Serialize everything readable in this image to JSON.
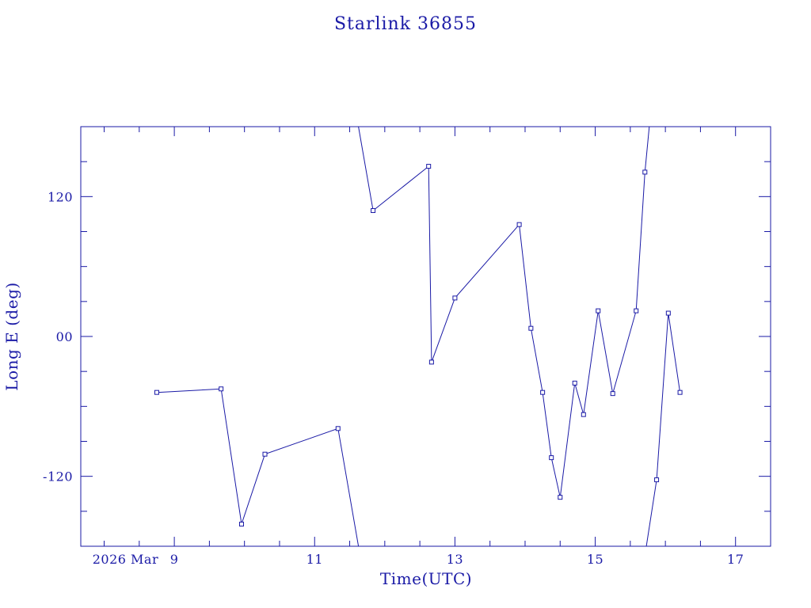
{
  "chart_data": {
    "type": "line",
    "title": "Starlink 36855",
    "xlabel": "Time(UTC)",
    "ylabel": "Long E (deg)",
    "x_date_prefix": "2026 Mar",
    "x_tick_labels": [
      "9",
      "11",
      "13",
      "15",
      "17"
    ],
    "xlim": [
      "2026-03-07T16:00",
      "2026-03-17T12:00"
    ],
    "y_tick_labels": [
      "120",
      "00",
      "-120"
    ],
    "ylim": [
      -180,
      180
    ],
    "grid": false,
    "color": "#1a1aa6",
    "series": [
      {
        "segments": [
          [
            {
              "t": "2026-03-08T18:00",
              "y": -48
            },
            {
              "t": "2026-03-09T16:00",
              "y": -45
            },
            {
              "t": "2026-03-09T23:00",
              "y": -161
            },
            {
              "t": "2026-03-10T07:00",
              "y": -101
            },
            {
              "t": "2026-03-11T08:00",
              "y": -79
            },
            {
              "t": "2026-03-11T15:00",
              "y": -180
            }
          ],
          [
            {
              "t": "2026-03-11T15:00",
              "y": 180
            },
            {
              "t": "2026-03-11T20:00",
              "y": 108
            },
            {
              "t": "2026-03-12T15:00",
              "y": 146
            },
            {
              "t": "2026-03-12T16:00",
              "y": -22
            },
            {
              "t": "2026-03-13T00:00",
              "y": 33
            },
            {
              "t": "2026-03-13T22:00",
              "y": 96
            },
            {
              "t": "2026-03-14T02:00",
              "y": 7
            },
            {
              "t": "2026-03-14T06:00",
              "y": -48
            },
            {
              "t": "2026-03-14T09:00",
              "y": -104
            },
            {
              "t": "2026-03-14T12:00",
              "y": -138
            },
            {
              "t": "2026-03-14T17:00",
              "y": -40
            },
            {
              "t": "2026-03-14T20:00",
              "y": -67
            },
            {
              "t": "2026-03-15T01:00",
              "y": 22
            },
            {
              "t": "2026-03-15T06:00",
              "y": -49
            },
            {
              "t": "2026-03-15T14:00",
              "y": 22
            },
            {
              "t": "2026-03-15T17:00",
              "y": 141
            },
            {
              "t": "2026-03-15T18:30",
              "y": 180
            }
          ],
          [
            {
              "t": "2026-03-15T17:30",
              "y": -180
            },
            {
              "t": "2026-03-15T21:00",
              "y": -123
            },
            {
              "t": "2026-03-16T01:00",
              "y": 20
            },
            {
              "t": "2026-03-16T05:00",
              "y": -48
            }
          ]
        ]
      }
    ]
  }
}
